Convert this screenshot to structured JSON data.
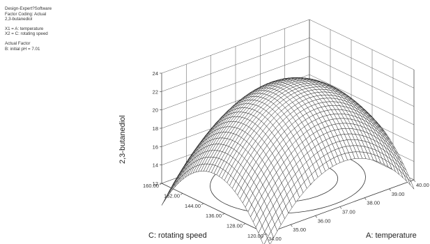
{
  "info": {
    "software": "Design-Expert?Software",
    "coding": "Factor Coding: Actual",
    "response": "2,3-butanediol",
    "x1": "X1 = A: temperature",
    "x2": "X2 = C: rotating speed",
    "actual_factor_title": "Actual Factor",
    "actual_factor": "B: initial pH = 7.01"
  },
  "chart_data": {
    "type": "surface",
    "title": "",
    "xlabel": "A: temperature",
    "ylabel": "C: rotating speed",
    "zlabel": "2,3-butanediol",
    "x_range": [
      34.0,
      40.0
    ],
    "y_range": [
      120.0,
      160.0
    ],
    "z_range": [
      12,
      24
    ],
    "x_ticks": [
      "34.00",
      "35.00",
      "36.00",
      "37.00",
      "38.00",
      "39.00",
      "40.00"
    ],
    "y_ticks": [
      "120.00",
      "128.00",
      "136.00",
      "144.00",
      "152.00",
      "160.00"
    ],
    "z_ticks": [
      "12",
      "14",
      "16",
      "18",
      "20",
      "22",
      "24"
    ],
    "surface_model": {
      "center_x": 37.0,
      "center_y": 140.0,
      "z_max": 22.6,
      "x_curvature": 6.3,
      "y_curvature": 6.0
    },
    "corner_values": [
      {
        "x": 34.0,
        "y": 120.0,
        "z": 11.4
      },
      {
        "x": 40.0,
        "y": 120.0,
        "z": 16.6
      },
      {
        "x": 34.0,
        "y": 160.0,
        "z": 14.0
      },
      {
        "x": 40.0,
        "y": 160.0,
        "z": 13.6
      }
    ],
    "grid": true,
    "colors": {
      "mesh": "#1a1a1a",
      "frame": "#555555",
      "contour": "#333333"
    }
  }
}
